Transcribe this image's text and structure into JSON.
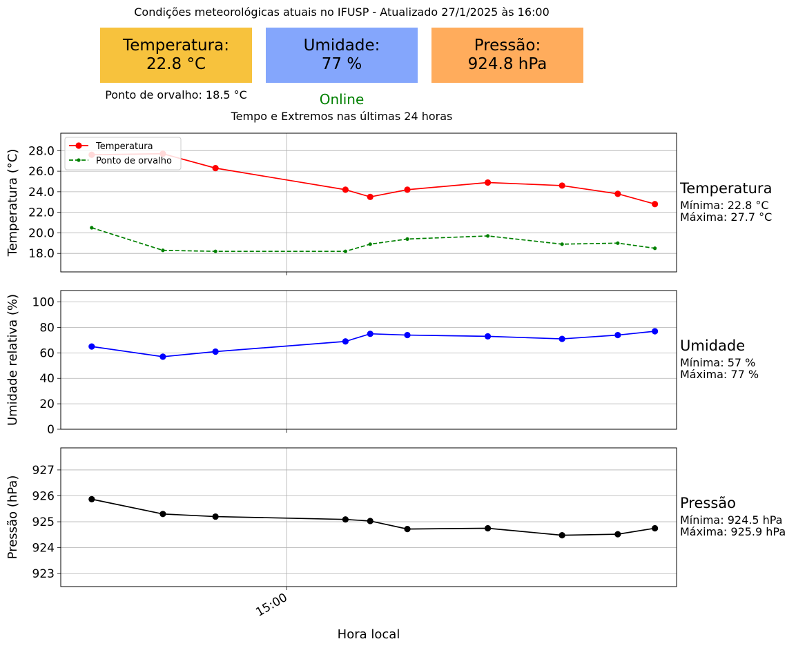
{
  "header": {
    "title": "Condições meteorológicas atuais no IFUSP - Atualizado 27/1/2025 às 16:00",
    "cards": [
      {
        "label": "Temperatura:",
        "value": "22.8 °C",
        "color": "#f7c23d"
      },
      {
        "label": "Umidade:",
        "value": "77 %",
        "color": "#84a6fc"
      },
      {
        "label": "Pressão:",
        "value": "924.8 hPa",
        "color": "#ffac5c"
      }
    ],
    "dew_point": "Ponto de orvalho: 18.5 °C",
    "status": "Online",
    "subtitle": "Tempo e Extremos nas últimas 24 horas"
  },
  "chart_data": [
    {
      "type": "line",
      "x": [
        "13:57",
        "14:20",
        "14:37",
        "15:19",
        "15:27",
        "15:39",
        "16:05",
        "16:29",
        "16:47",
        "16:59"
      ],
      "series": [
        {
          "name": "Temperatura",
          "color": "#ff0000",
          "style": "solid-circle",
          "values": [
            27.6,
            27.7,
            26.3,
            24.2,
            23.5,
            24.2,
            24.9,
            24.6,
            23.8,
            22.8
          ]
        },
        {
          "name": "Ponto de orvalho",
          "color": "#008000",
          "style": "dashed-dot",
          "values": [
            20.5,
            18.3,
            18.2,
            18.2,
            18.9,
            19.4,
            19.7,
            18.9,
            19.0,
            18.5
          ]
        }
      ],
      "ylabel": "Temperatura (°C)",
      "yticks": [
        "18.0",
        "20.0",
        "22.0",
        "24.0",
        "26.0",
        "28.0"
      ],
      "ylim": [
        16.2,
        29.7
      ],
      "legend": "upper-left",
      "grid": true,
      "side": {
        "title": "Temperatura",
        "min": "Mínima: 22.8 °C",
        "max": "Máxima: 27.7 °C",
        "color": "#000000"
      }
    },
    {
      "type": "line",
      "x": [
        "13:57",
        "14:20",
        "14:37",
        "15:19",
        "15:27",
        "15:39",
        "16:05",
        "16:29",
        "16:47",
        "16:59"
      ],
      "series": [
        {
          "color": "#0000ff",
          "style": "solid-circle",
          "values": [
            65,
            57,
            61,
            69,
            75,
            74,
            73,
            71,
            74,
            77
          ]
        }
      ],
      "ylabel": "Umidade relativa (%)",
      "yticks": [
        "0",
        "20",
        "40",
        "60",
        "80",
        "100"
      ],
      "ylim": [
        0,
        109
      ],
      "grid": true,
      "side": {
        "title": "Umidade",
        "min": "Mínima: 57 %",
        "max": "Máxima: 77 %"
      }
    },
    {
      "type": "line",
      "x": [
        "13:57",
        "14:20",
        "14:37",
        "15:19",
        "15:27",
        "15:39",
        "16:05",
        "16:29",
        "16:47",
        "16:59"
      ],
      "series": [
        {
          "color": "#000000",
          "style": "solid-circle",
          "values": [
            925.87,
            925.3,
            925.2,
            925.09,
            925.03,
            924.72,
            924.75,
            924.48,
            924.52,
            924.75
          ]
        }
      ],
      "ylabel": "Pressão (hPa)",
      "yticks": [
        "923",
        "924",
        "925",
        "926",
        "927"
      ],
      "ylim": [
        922.5,
        927.85
      ],
      "grid": true,
      "side": {
        "title": "Pressão",
        "min": "Mínima: 924.5 hPa",
        "max": "Máxima: 925.9 hPa"
      }
    }
  ],
  "x_axis": {
    "label": "Hora local",
    "tick": "15:00"
  }
}
